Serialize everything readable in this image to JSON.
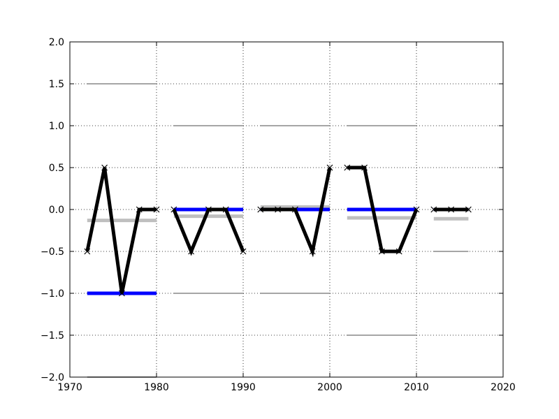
{
  "chart_data": {
    "type": "line",
    "title": "",
    "xlabel": "",
    "ylabel": "",
    "xlim": [
      1970,
      2020
    ],
    "ylim": [
      -2.0,
      2.0
    ],
    "grid": true,
    "x_ticks": [
      1970,
      1980,
      1990,
      2000,
      2010,
      2020
    ],
    "x_tick_labels": [
      "1970",
      "1980",
      "1990",
      "2000",
      "2010",
      "2020"
    ],
    "y_ticks": [
      2.0,
      1.5,
      1.0,
      0.5,
      0.0,
      -0.5,
      -1.0,
      -1.5,
      -2.0
    ],
    "y_tick_labels": [
      "2.0",
      "1.5",
      "1.0",
      "0.5",
      "0.0",
      "−0.5",
      "−1.0",
      "−1.5",
      "−2.0"
    ],
    "colors": {
      "main_line": "#000000",
      "blue_level": "#0000ff",
      "gray_level": "#bfbfbf",
      "thin_level": "#a6a6a6"
    },
    "series": [
      {
        "x": [
          1972,
          1974,
          1976,
          1978,
          1980
        ],
        "y": [
          -0.5,
          0.5,
          -1.0,
          0.0,
          0.0
        ]
      },
      {
        "x": [
          1982,
          1984,
          1986,
          1988,
          1990
        ],
        "y": [
          0.0,
          -0.5,
          0.0,
          0.0,
          -0.5
        ]
      },
      {
        "x": [
          1992,
          1994,
          1996,
          1998,
          2000
        ],
        "y": [
          0.0,
          0.0,
          0.0,
          -0.5,
          0.5
        ]
      },
      {
        "x": [
          2002,
          2004,
          2006,
          2008,
          2010
        ],
        "y": [
          0.5,
          0.5,
          -0.5,
          -0.5,
          0.0
        ]
      },
      {
        "x": [
          2012,
          2014,
          2016
        ],
        "y": [
          0.0,
          0.0,
          0.0
        ]
      }
    ],
    "blue_levels": [
      {
        "x": [
          1972,
          1980
        ],
        "y": -1.0
      },
      {
        "x": [
          1982,
          1990
        ],
        "y": 0.0
      },
      {
        "x": [
          1992,
          2000
        ],
        "y": 0.0
      },
      {
        "x": [
          2002,
          2010
        ],
        "y": 0.0
      },
      {
        "x": [
          2012,
          2016
        ],
        "y": 0.0
      }
    ],
    "gray_levels": [
      {
        "x": [
          1972,
          1980
        ],
        "y": -0.13
      },
      {
        "x": [
          1982,
          1990
        ],
        "y": -0.08
      },
      {
        "x": [
          1992,
          2000
        ],
        "y": 0.03
      },
      {
        "x": [
          2002,
          2010
        ],
        "y": -0.1
      },
      {
        "x": [
          2012,
          2016
        ],
        "y": -0.11
      }
    ],
    "thin_levels": [
      {
        "x": [
          1972,
          1980
        ],
        "y": 1.5
      },
      {
        "x": [
          1972,
          1980
        ],
        "y": -2.0
      },
      {
        "x": [
          1982,
          1990
        ],
        "y": 1.0
      },
      {
        "x": [
          1982,
          1990
        ],
        "y": -1.0
      },
      {
        "x": [
          1992,
          2000
        ],
        "y": 1.0
      },
      {
        "x": [
          1992,
          2000
        ],
        "y": -1.0
      },
      {
        "x": [
          2002,
          2010
        ],
        "y": 1.0
      },
      {
        "x": [
          2002,
          2010
        ],
        "y": -1.5
      },
      {
        "x": [
          2012,
          2016
        ],
        "y": -0.5
      }
    ]
  }
}
